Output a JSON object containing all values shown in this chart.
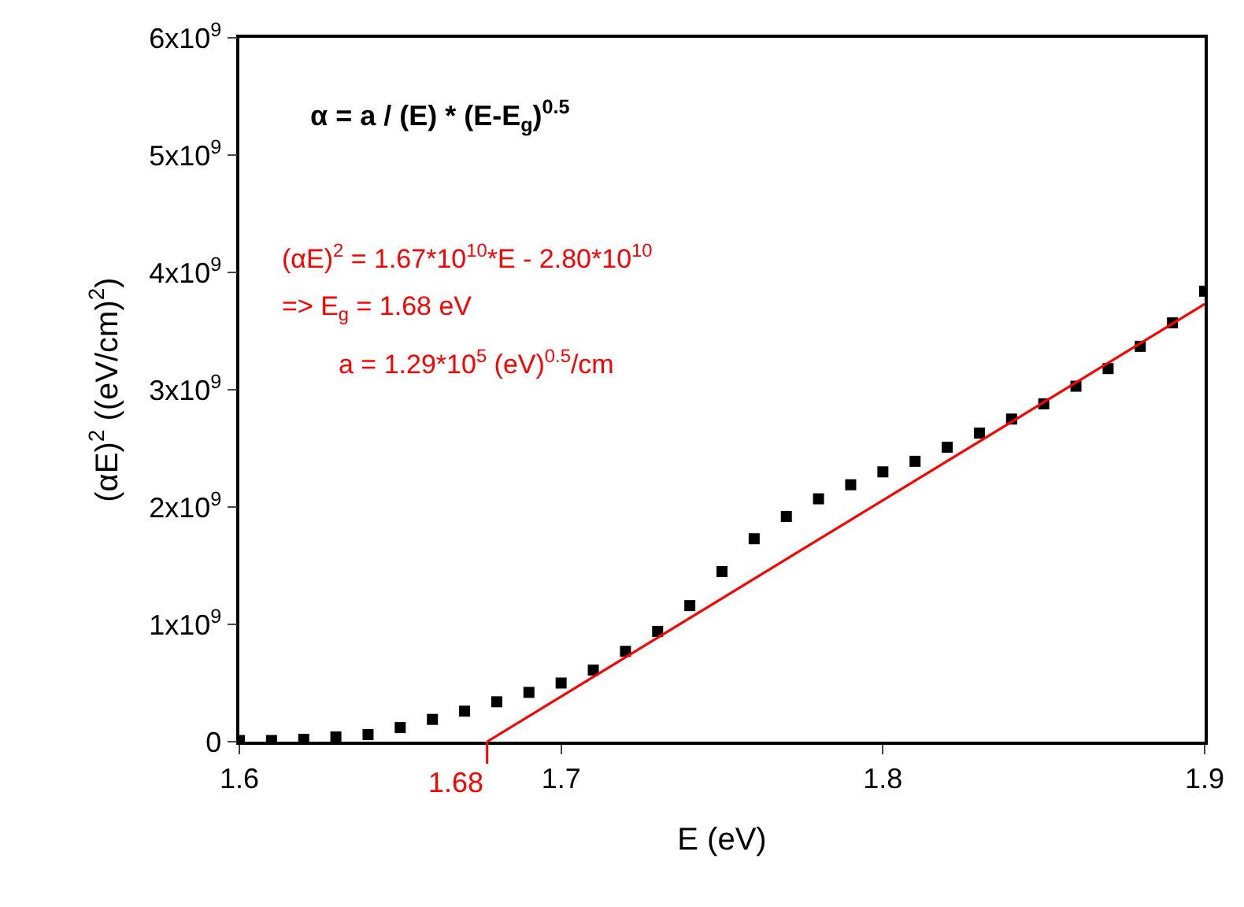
{
  "chart_data": {
    "type": "scatter",
    "xlabel": "E (eV)",
    "ylabel": "(αE)$^{2}$ ((eV/cm)$^{2}$)",
    "xlim": [
      1.6,
      1.9
    ],
    "xticks": [
      1.6,
      1.7,
      1.8,
      1.9
    ],
    "ylim": [
      0,
      6000000000
    ],
    "yticks": [
      0,
      {
        "value": 1000000000,
        "label": "1x10$^{9}$"
      },
      {
        "value": 2000000000,
        "label": "2x10$^{9}$"
      },
      {
        "value": 3000000000,
        "label": "3x10$^{9}$"
      },
      {
        "value": 4000000000,
        "label": "4x10$^{9}$"
      },
      {
        "value": 5000000000,
        "label": "5x10$^{9}$"
      },
      {
        "value": 6000000000,
        "label": "6x10$^{9}$"
      }
    ],
    "grid": false,
    "series": [
      {
        "color": "#000000",
        "marker": "square",
        "x": [
          1.6,
          1.61,
          1.62,
          1.63,
          1.64,
          1.65,
          1.66,
          1.67,
          1.68,
          1.69,
          1.7,
          1.71,
          1.72,
          1.73,
          1.74,
          1.75,
          1.76,
          1.77,
          1.78,
          1.79,
          1.8,
          1.81,
          1.82,
          1.83,
          1.84,
          1.85,
          1.86,
          1.87,
          1.88,
          1.89,
          1.9
        ],
        "values": [
          10000000,
          10000000,
          20000000,
          40000000,
          60000000,
          120000000,
          190000000,
          260000000,
          340000000,
          420000000,
          500000000,
          610000000,
          770000000,
          940000000,
          1160000000,
          1450000000,
          1730000000,
          1920000000,
          2070000000,
          2190000000,
          2300000000,
          2390000000,
          2510000000,
          2630000000,
          2750000000,
          2880000000,
          3030000000,
          3180000000,
          3370000000,
          3570000000,
          3840000000
        ]
      },
      {
        "type": "line",
        "color": "#ff0000",
        "line_style": "solid",
        "x": [
          1.677,
          1.9
        ],
        "values": [
          0,
          3730000000
        ]
      }
    ],
    "annotations": [
      "α = a / (E) * (E-E$_{g}$)$^{0.5}$",
      "(αE)$^{2}$ = 1.67*10$^{10}$*E - 2.80*10$^{10}$",
      "=> E$_{g}$ = 1.68 eV",
      "a = 1.29*10$^{5}$ (eV)$^{0.5}$/cm",
      {
        "text": "1.68",
        "x": 1.677,
        "y": 0
      }
    ]
  }
}
